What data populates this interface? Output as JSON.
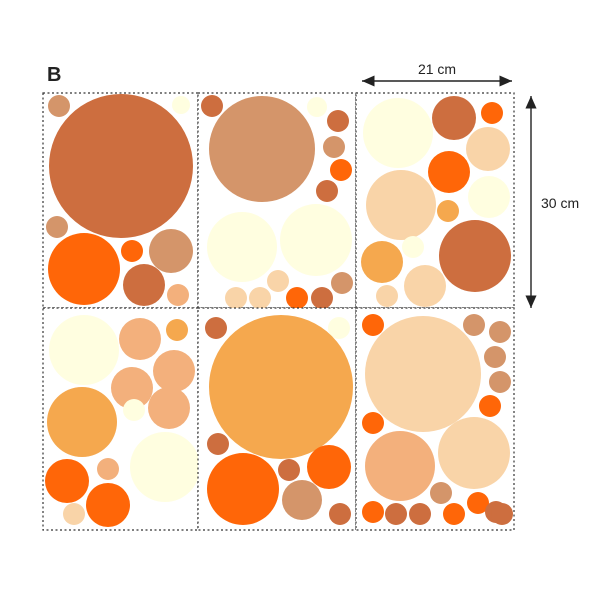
{
  "panel_label": "B",
  "dimension_width": "21 cm",
  "dimension_height": "30 cm",
  "colors": {
    "rust": "#CD6E3F",
    "tan": "#D4956A",
    "orange": "#FF6608",
    "amber": "#F5A84E",
    "peach": "#F9D4A8",
    "salmon": "#F3B07C",
    "cream": "#FFFEE0",
    "border": "#333333",
    "text": "#222222"
  },
  "sheets": [
    {
      "position": "top-left",
      "dot_colors": [
        "tan",
        "cream",
        "rust",
        "tan",
        "orange",
        "orange",
        "tan",
        "rust",
        "salmon"
      ]
    },
    {
      "position": "top-middle",
      "dot_colors": [
        "rust",
        "cream",
        "tan",
        "rust",
        "tan",
        "orange",
        "rust",
        "cream",
        "cream",
        "peach",
        "peach",
        "peach",
        "orange",
        "rust",
        "tan"
      ]
    },
    {
      "position": "top-right",
      "dot_colors": [
        "cream",
        "rust",
        "orange",
        "peach",
        "orange",
        "cream",
        "peach",
        "amber",
        "rust",
        "amber",
        "peach",
        "peach",
        "cream"
      ]
    },
    {
      "position": "bottom-left",
      "dot_colors": [
        "cream",
        "salmon",
        "amber",
        "salmon",
        "salmon",
        "amber",
        "salmon",
        "cream",
        "orange",
        "cream",
        "orange",
        "salmon",
        "orange",
        "peach"
      ]
    },
    {
      "position": "bottom-middle",
      "dot_colors": [
        "rust",
        "cream",
        "amber",
        "rust",
        "orange",
        "rust",
        "orange",
        "tan",
        "rust"
      ]
    },
    {
      "position": "bottom-right",
      "dot_colors": [
        "orange",
        "peach",
        "tan",
        "tan",
        "tan",
        "tan",
        "orange",
        "orange",
        "salmon",
        "peach",
        "tan",
        "orange",
        "rust",
        "orange",
        "rust",
        "rust",
        "orange",
        "rust"
      ]
    }
  ]
}
